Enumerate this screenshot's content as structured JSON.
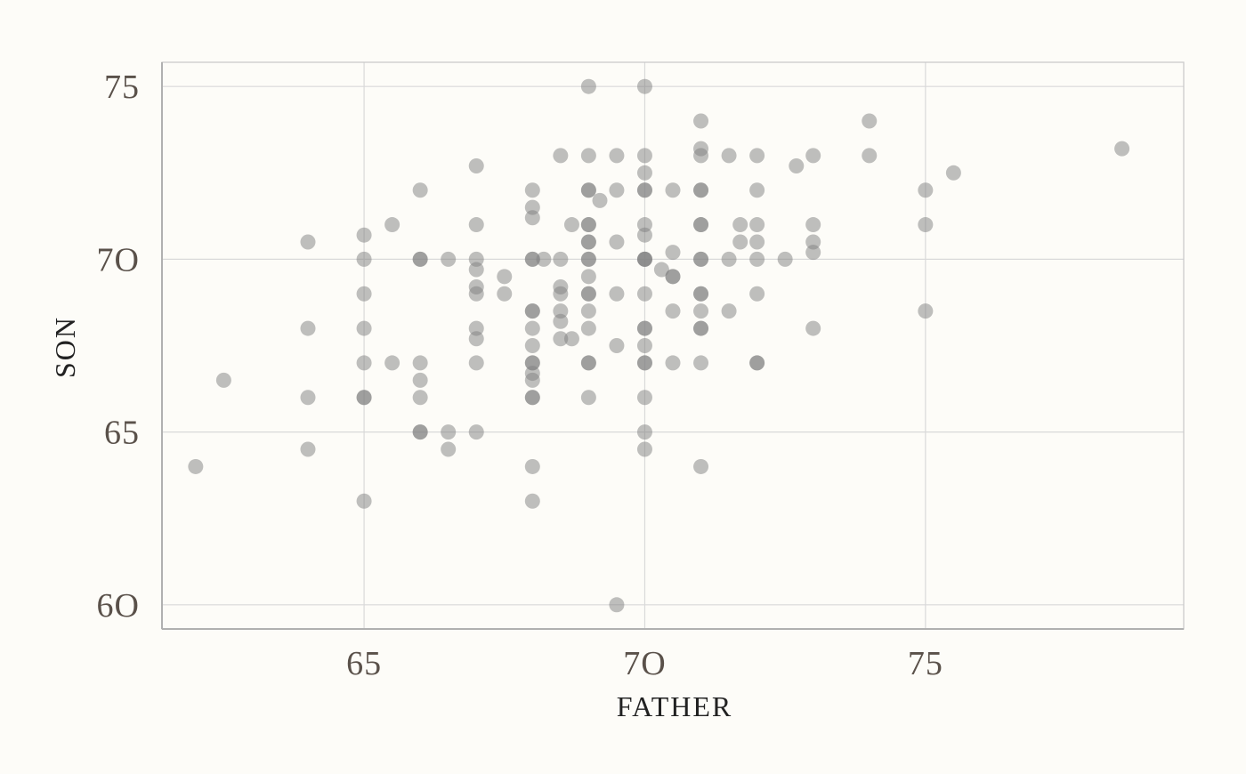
{
  "chart_data": {
    "type": "scatter",
    "xlabel": "FATHER",
    "ylabel": "SON",
    "xlim": [
      61.4,
      79.6
    ],
    "ylim": [
      59.3,
      75.7
    ],
    "x_ticks": [
      65,
      70,
      75
    ],
    "y_ticks": [
      60,
      65,
      70,
      75
    ],
    "x_tick_labels": [
      "65",
      "7O",
      "75"
    ],
    "y_tick_labels": [
      "6O",
      "65",
      "7O",
      "75"
    ],
    "grid": true,
    "point_color": "#7f7f7f",
    "point_opacity": 0.5,
    "background": "#fdfcf8",
    "points": [
      {
        "x": 62,
        "y": 64
      },
      {
        "x": 62.5,
        "y": 66.5
      },
      {
        "x": 64,
        "y": 70.5
      },
      {
        "x": 64,
        "y": 68
      },
      {
        "x": 64,
        "y": 66
      },
      {
        "x": 64,
        "y": 64.5
      },
      {
        "x": 65,
        "y": 70.7
      },
      {
        "x": 65,
        "y": 70
      },
      {
        "x": 65,
        "y": 69
      },
      {
        "x": 65,
        "y": 68
      },
      {
        "x": 65,
        "y": 67
      },
      {
        "x": 65,
        "y": 66
      },
      {
        "x": 65,
        "y": 66
      },
      {
        "x": 65,
        "y": 63
      },
      {
        "x": 65.5,
        "y": 71
      },
      {
        "x": 65.5,
        "y": 67
      },
      {
        "x": 66,
        "y": 72
      },
      {
        "x": 66,
        "y": 70
      },
      {
        "x": 66,
        "y": 70
      },
      {
        "x": 66,
        "y": 67
      },
      {
        "x": 66,
        "y": 66.5
      },
      {
        "x": 66,
        "y": 66
      },
      {
        "x": 66,
        "y": 65
      },
      {
        "x": 66,
        "y": 65
      },
      {
        "x": 66.5,
        "y": 70
      },
      {
        "x": 66.5,
        "y": 65
      },
      {
        "x": 66.5,
        "y": 64.5
      },
      {
        "x": 67,
        "y": 72.7
      },
      {
        "x": 67,
        "y": 71
      },
      {
        "x": 67,
        "y": 70
      },
      {
        "x": 67,
        "y": 69.7
      },
      {
        "x": 67,
        "y": 69.2
      },
      {
        "x": 67,
        "y": 69
      },
      {
        "x": 67,
        "y": 68
      },
      {
        "x": 67,
        "y": 67.7
      },
      {
        "x": 67,
        "y": 67
      },
      {
        "x": 67,
        "y": 65
      },
      {
        "x": 67.5,
        "y": 69.5
      },
      {
        "x": 67.5,
        "y": 69
      },
      {
        "x": 68,
        "y": 72
      },
      {
        "x": 68,
        "y": 71.5
      },
      {
        "x": 68,
        "y": 71.2
      },
      {
        "x": 68,
        "y": 70
      },
      {
        "x": 68,
        "y": 70
      },
      {
        "x": 68,
        "y": 68.5
      },
      {
        "x": 68,
        "y": 68.5
      },
      {
        "x": 68,
        "y": 68
      },
      {
        "x": 68,
        "y": 67.5
      },
      {
        "x": 68,
        "y": 67
      },
      {
        "x": 68,
        "y": 67
      },
      {
        "x": 68,
        "y": 66.7
      },
      {
        "x": 68,
        "y": 66.5
      },
      {
        "x": 68,
        "y": 66
      },
      {
        "x": 68,
        "y": 66
      },
      {
        "x": 68,
        "y": 64
      },
      {
        "x": 68,
        "y": 63
      },
      {
        "x": 68.2,
        "y": 70
      },
      {
        "x": 68.5,
        "y": 73
      },
      {
        "x": 68.5,
        "y": 70
      },
      {
        "x": 68.5,
        "y": 69.2
      },
      {
        "x": 68.5,
        "y": 69
      },
      {
        "x": 68.5,
        "y": 68.5
      },
      {
        "x": 68.5,
        "y": 68.2
      },
      {
        "x": 68.5,
        "y": 67.7
      },
      {
        "x": 68.7,
        "y": 71
      },
      {
        "x": 68.7,
        "y": 67.7
      },
      {
        "x": 69,
        "y": 75
      },
      {
        "x": 69,
        "y": 73
      },
      {
        "x": 69,
        "y": 72
      },
      {
        "x": 69,
        "y": 72
      },
      {
        "x": 69,
        "y": 71
      },
      {
        "x": 69,
        "y": 71
      },
      {
        "x": 69,
        "y": 70.5
      },
      {
        "x": 69,
        "y": 70.5
      },
      {
        "x": 69,
        "y": 70
      },
      {
        "x": 69,
        "y": 70
      },
      {
        "x": 69,
        "y": 69.5
      },
      {
        "x": 69,
        "y": 69
      },
      {
        "x": 69,
        "y": 69
      },
      {
        "x": 69,
        "y": 68.5
      },
      {
        "x": 69,
        "y": 68
      },
      {
        "x": 69,
        "y": 67
      },
      {
        "x": 69,
        "y": 67
      },
      {
        "x": 69,
        "y": 66
      },
      {
        "x": 69.2,
        "y": 71.7
      },
      {
        "x": 69.5,
        "y": 73
      },
      {
        "x": 69.5,
        "y": 72
      },
      {
        "x": 69.5,
        "y": 70.5
      },
      {
        "x": 69.5,
        "y": 69
      },
      {
        "x": 69.5,
        "y": 67.5
      },
      {
        "x": 69.5,
        "y": 60
      },
      {
        "x": 70,
        "y": 75
      },
      {
        "x": 70,
        "y": 73
      },
      {
        "x": 70,
        "y": 72.5
      },
      {
        "x": 70,
        "y": 72
      },
      {
        "x": 70,
        "y": 72
      },
      {
        "x": 70,
        "y": 71
      },
      {
        "x": 70,
        "y": 70.7
      },
      {
        "x": 70,
        "y": 70
      },
      {
        "x": 70,
        "y": 70
      },
      {
        "x": 70,
        "y": 70
      },
      {
        "x": 70,
        "y": 69
      },
      {
        "x": 70,
        "y": 68
      },
      {
        "x": 70,
        "y": 68
      },
      {
        "x": 70,
        "y": 67.5
      },
      {
        "x": 70,
        "y": 67
      },
      {
        "x": 70,
        "y": 67
      },
      {
        "x": 70,
        "y": 66
      },
      {
        "x": 70,
        "y": 65
      },
      {
        "x": 70,
        "y": 64.5
      },
      {
        "x": 70.3,
        "y": 69.7
      },
      {
        "x": 70.5,
        "y": 72
      },
      {
        "x": 70.5,
        "y": 70.2
      },
      {
        "x": 70.5,
        "y": 69.5
      },
      {
        "x": 70.5,
        "y": 69.5
      },
      {
        "x": 70.5,
        "y": 68.5
      },
      {
        "x": 70.5,
        "y": 67
      },
      {
        "x": 71,
        "y": 74
      },
      {
        "x": 71,
        "y": 73.2
      },
      {
        "x": 71,
        "y": 73
      },
      {
        "x": 71,
        "y": 72
      },
      {
        "x": 71,
        "y": 72
      },
      {
        "x": 71,
        "y": 71
      },
      {
        "x": 71,
        "y": 71
      },
      {
        "x": 71,
        "y": 70
      },
      {
        "x": 71,
        "y": 70
      },
      {
        "x": 71,
        "y": 69
      },
      {
        "x": 71,
        "y": 69
      },
      {
        "x": 71,
        "y": 68.5
      },
      {
        "x": 71,
        "y": 68
      },
      {
        "x": 71,
        "y": 68
      },
      {
        "x": 71,
        "y": 67
      },
      {
        "x": 71,
        "y": 64
      },
      {
        "x": 71.5,
        "y": 73
      },
      {
        "x": 71.5,
        "y": 70
      },
      {
        "x": 71.5,
        "y": 68.5
      },
      {
        "x": 71.7,
        "y": 71
      },
      {
        "x": 71.7,
        "y": 70.5
      },
      {
        "x": 72,
        "y": 73
      },
      {
        "x": 72,
        "y": 72
      },
      {
        "x": 72,
        "y": 71
      },
      {
        "x": 72,
        "y": 70.5
      },
      {
        "x": 72,
        "y": 70
      },
      {
        "x": 72,
        "y": 69
      },
      {
        "x": 72,
        "y": 67
      },
      {
        "x": 72,
        "y": 67
      },
      {
        "x": 72.5,
        "y": 70
      },
      {
        "x": 72.7,
        "y": 72.7
      },
      {
        "x": 73,
        "y": 73
      },
      {
        "x": 73,
        "y": 71
      },
      {
        "x": 73,
        "y": 70.5
      },
      {
        "x": 73,
        "y": 70.2
      },
      {
        "x": 73,
        "y": 68
      },
      {
        "x": 74,
        "y": 74
      },
      {
        "x": 74,
        "y": 73
      },
      {
        "x": 75,
        "y": 72
      },
      {
        "x": 75,
        "y": 71
      },
      {
        "x": 75,
        "y": 68.5
      },
      {
        "x": 75.5,
        "y": 72.5
      },
      {
        "x": 78.5,
        "y": 73.2
      }
    ]
  }
}
